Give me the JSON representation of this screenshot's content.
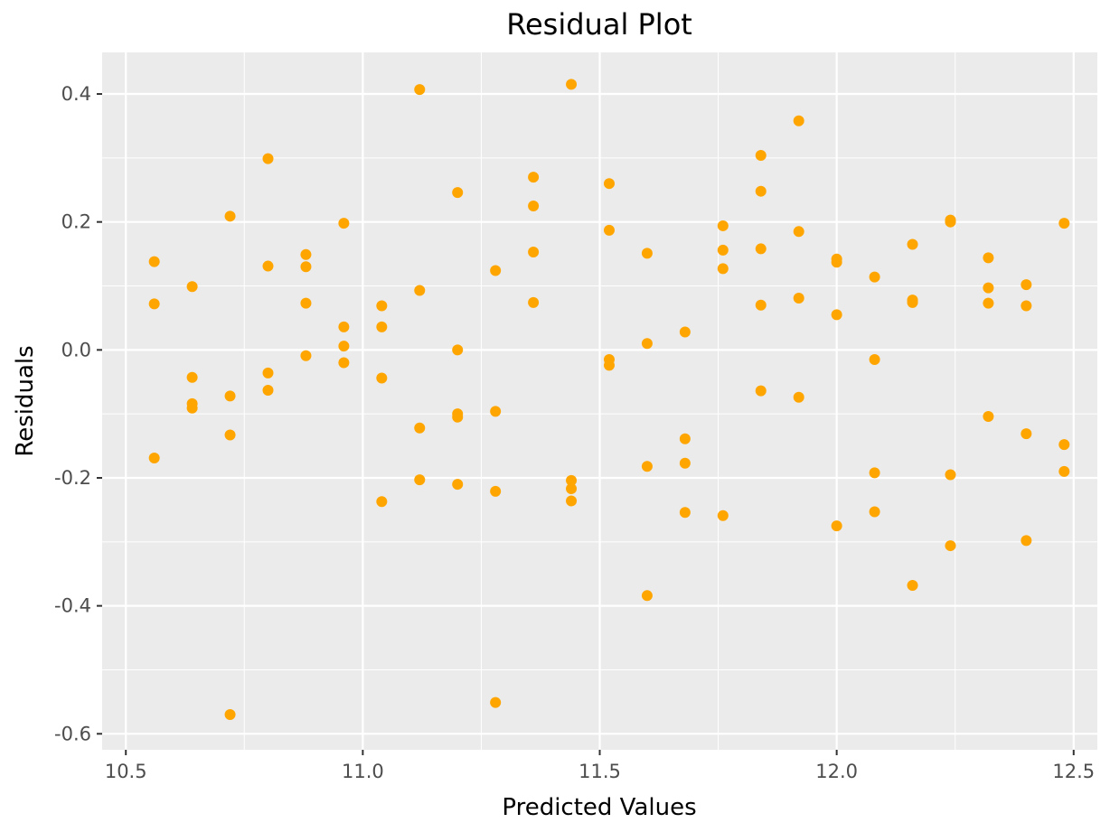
{
  "chart_data": {
    "type": "scatter",
    "title": "Residual Plot",
    "xlabel": "Predicted Values",
    "ylabel": "Residuals",
    "xlim": [
      10.45,
      12.55
    ],
    "ylim": [
      -0.625,
      0.465
    ],
    "x_ticks": [
      10.5,
      11.0,
      11.5,
      12.0,
      12.5
    ],
    "x_tick_labels": [
      "10.5",
      "11.0",
      "11.5",
      "12.0",
      "12.5"
    ],
    "y_ticks": [
      -0.6,
      -0.4,
      -0.2,
      0.0,
      0.2,
      0.4
    ],
    "y_tick_labels": [
      "-0.6",
      "-0.4",
      "-0.2",
      "0.0",
      "0.2",
      "0.4"
    ],
    "grid": true,
    "colors": {
      "panel": "#ebebeb",
      "grid": "#ffffff",
      "points": "#ffa500",
      "ticks": "#333333"
    },
    "points": [
      {
        "x": 10.56,
        "y": 0.138
      },
      {
        "x": 10.56,
        "y": 0.072
      },
      {
        "x": 10.56,
        "y": -0.169
      },
      {
        "x": 10.64,
        "y": 0.099
      },
      {
        "x": 10.64,
        "y": -0.043
      },
      {
        "x": 10.64,
        "y": -0.084
      },
      {
        "x": 10.64,
        "y": -0.091
      },
      {
        "x": 10.72,
        "y": 0.209
      },
      {
        "x": 10.72,
        "y": -0.072
      },
      {
        "x": 10.72,
        "y": -0.133
      },
      {
        "x": 10.72,
        "y": -0.57
      },
      {
        "x": 10.8,
        "y": 0.299
      },
      {
        "x": 10.8,
        "y": 0.131
      },
      {
        "x": 10.8,
        "y": -0.036
      },
      {
        "x": 10.8,
        "y": -0.063
      },
      {
        "x": 10.88,
        "y": 0.149
      },
      {
        "x": 10.88,
        "y": 0.13
      },
      {
        "x": 10.88,
        "y": 0.073
      },
      {
        "x": 10.88,
        "y": -0.009
      },
      {
        "x": 10.96,
        "y": 0.198
      },
      {
        "x": 10.96,
        "y": 0.036
      },
      {
        "x": 10.96,
        "y": 0.006
      },
      {
        "x": 10.96,
        "y": -0.02
      },
      {
        "x": 11.04,
        "y": 0.069
      },
      {
        "x": 11.04,
        "y": 0.036
      },
      {
        "x": 11.04,
        "y": -0.044
      },
      {
        "x": 11.04,
        "y": -0.237
      },
      {
        "x": 11.12,
        "y": 0.407
      },
      {
        "x": 11.12,
        "y": 0.093
      },
      {
        "x": 11.12,
        "y": -0.122
      },
      {
        "x": 11.12,
        "y": -0.203
      },
      {
        "x": 11.2,
        "y": 0.246
      },
      {
        "x": 11.2,
        "y": 0.0
      },
      {
        "x": 11.2,
        "y": -0.1
      },
      {
        "x": 11.2,
        "y": -0.105
      },
      {
        "x": 11.2,
        "y": -0.21
      },
      {
        "x": 11.28,
        "y": 0.124
      },
      {
        "x": 11.28,
        "y": -0.096
      },
      {
        "x": 11.28,
        "y": -0.221
      },
      {
        "x": 11.28,
        "y": -0.551
      },
      {
        "x": 11.36,
        "y": 0.27
      },
      {
        "x": 11.36,
        "y": 0.225
      },
      {
        "x": 11.36,
        "y": 0.153
      },
      {
        "x": 11.36,
        "y": 0.074
      },
      {
        "x": 11.44,
        "y": 0.415
      },
      {
        "x": 11.44,
        "y": -0.204
      },
      {
        "x": 11.44,
        "y": -0.217
      },
      {
        "x": 11.44,
        "y": -0.236
      },
      {
        "x": 11.52,
        "y": 0.26
      },
      {
        "x": 11.52,
        "y": 0.187
      },
      {
        "x": 11.52,
        "y": -0.015
      },
      {
        "x": 11.52,
        "y": -0.024
      },
      {
        "x": 11.6,
        "y": 0.151
      },
      {
        "x": 11.6,
        "y": 0.01
      },
      {
        "x": 11.6,
        "y": -0.182
      },
      {
        "x": 11.6,
        "y": -0.384
      },
      {
        "x": 11.68,
        "y": 0.028
      },
      {
        "x": 11.68,
        "y": -0.139
      },
      {
        "x": 11.68,
        "y": -0.177
      },
      {
        "x": 11.68,
        "y": -0.254
      },
      {
        "x": 11.76,
        "y": 0.194
      },
      {
        "x": 11.76,
        "y": 0.156
      },
      {
        "x": 11.76,
        "y": 0.127
      },
      {
        "x": 11.76,
        "y": -0.259
      },
      {
        "x": 11.84,
        "y": 0.304
      },
      {
        "x": 11.84,
        "y": 0.248
      },
      {
        "x": 11.84,
        "y": 0.158
      },
      {
        "x": 11.84,
        "y": 0.07
      },
      {
        "x": 11.84,
        "y": -0.064
      },
      {
        "x": 11.92,
        "y": 0.358
      },
      {
        "x": 11.92,
        "y": 0.185
      },
      {
        "x": 11.92,
        "y": 0.081
      },
      {
        "x": 11.92,
        "y": -0.074
      },
      {
        "x": 12.0,
        "y": 0.142
      },
      {
        "x": 12.0,
        "y": 0.137
      },
      {
        "x": 12.0,
        "y": 0.055
      },
      {
        "x": 12.0,
        "y": -0.275
      },
      {
        "x": 12.08,
        "y": 0.114
      },
      {
        "x": 12.08,
        "y": -0.015
      },
      {
        "x": 12.08,
        "y": -0.192
      },
      {
        "x": 12.08,
        "y": -0.253
      },
      {
        "x": 12.16,
        "y": 0.165
      },
      {
        "x": 12.16,
        "y": 0.078
      },
      {
        "x": 12.16,
        "y": 0.074
      },
      {
        "x": 12.16,
        "y": -0.368
      },
      {
        "x": 12.24,
        "y": 0.203
      },
      {
        "x": 12.24,
        "y": 0.2
      },
      {
        "x": 12.24,
        "y": -0.195
      },
      {
        "x": 12.24,
        "y": -0.306
      },
      {
        "x": 12.32,
        "y": 0.144
      },
      {
        "x": 12.32,
        "y": 0.097
      },
      {
        "x": 12.32,
        "y": 0.073
      },
      {
        "x": 12.32,
        "y": -0.104
      },
      {
        "x": 12.4,
        "y": 0.102
      },
      {
        "x": 12.4,
        "y": 0.069
      },
      {
        "x": 12.4,
        "y": -0.131
      },
      {
        "x": 12.4,
        "y": -0.298
      },
      {
        "x": 12.48,
        "y": 0.198
      },
      {
        "x": 12.48,
        "y": -0.148
      },
      {
        "x": 12.48,
        "y": -0.19
      }
    ]
  }
}
